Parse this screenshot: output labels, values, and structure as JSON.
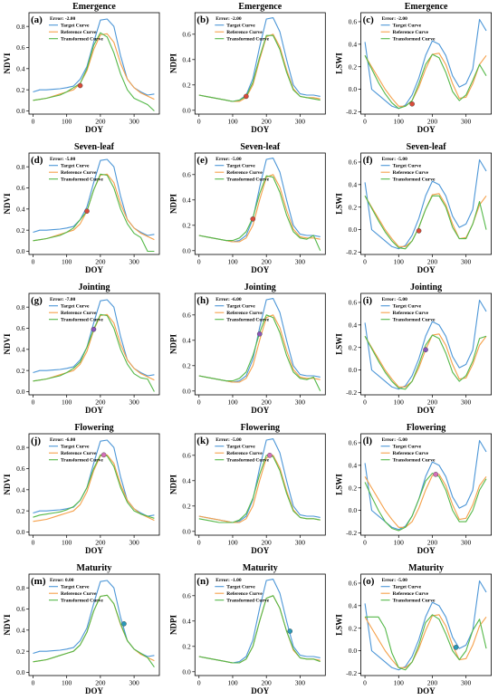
{
  "series_names": [
    "Target Curve",
    "Reference Curve",
    "Transformed Curve"
  ],
  "colors": {
    "target": "#4c96d7",
    "reference": "#f5a04a",
    "transformed": "#54b848"
  },
  "charts": [
    {
      "label": "(a)",
      "title": "Emergence",
      "ylabel": "NDVI",
      "xlabel": "DOY",
      "error": "Error: -2.00",
      "index": "ndvi",
      "stage": "emergence",
      "shift": -2,
      "marker": {
        "x": 140,
        "y": 0.24,
        "color": "#d94b3a"
      }
    },
    {
      "label": "(b)",
      "title": "Emergence",
      "ylabel": "NDPI",
      "xlabel": "DOY",
      "error": "Error: -2.00",
      "index": "ndpi",
      "stage": "emergence",
      "shift": -2,
      "marker": {
        "x": 140,
        "y": 0.11,
        "color": "#d94b3a"
      }
    },
    {
      "label": "(c)",
      "title": "Emergence",
      "ylabel": "LSWI",
      "xlabel": "DOY",
      "error": "Error: -2.00",
      "index": "lswi",
      "stage": "emergence",
      "shift": -2,
      "marker": {
        "x": 140,
        "y": -0.13,
        "color": "#d94b3a"
      }
    },
    {
      "label": "(d)",
      "title": "Seven-leaf",
      "ylabel": "NDVI",
      "xlabel": "DOY",
      "error": "Error: -5.00",
      "index": "ndvi",
      "stage": "seven",
      "shift": -5,
      "marker": {
        "x": 160,
        "y": 0.38,
        "color": "#d94b3a"
      }
    },
    {
      "label": "(e)",
      "title": "Seven-leaf",
      "ylabel": "NDPI",
      "xlabel": "DOY",
      "error": "Error: -5.00",
      "index": "ndpi",
      "stage": "seven",
      "shift": -5,
      "marker": {
        "x": 160,
        "y": 0.25,
        "color": "#d94b3a"
      }
    },
    {
      "label": "(f)",
      "title": "Seven-leaf",
      "ylabel": "LSWI",
      "xlabel": "DOY",
      "error": "Error: -5.00",
      "index": "lswi",
      "stage": "seven",
      "shift": -5,
      "marker": {
        "x": 160,
        "y": -0.01,
        "color": "#d94b3a"
      }
    },
    {
      "label": "(g)",
      "title": "Jointing",
      "ylabel": "NDVI",
      "xlabel": "DOY",
      "error": "Error: -7.00",
      "index": "ndvi",
      "stage": "jointing",
      "shift": -7,
      "marker": {
        "x": 180,
        "y": 0.59,
        "color": "#8a55b8"
      }
    },
    {
      "label": "(h)",
      "title": "Jointing",
      "ylabel": "NDPI",
      "xlabel": "DOY",
      "error": "Error: -6.00",
      "index": "ndpi",
      "stage": "jointing",
      "shift": -6,
      "marker": {
        "x": 180,
        "y": 0.45,
        "color": "#8a55b8"
      }
    },
    {
      "label": "(i)",
      "title": "Jointing",
      "ylabel": "LSWI",
      "xlabel": "DOY",
      "error": "Error: -5.00",
      "index": "lswi",
      "stage": "jointing",
      "shift": -5,
      "marker": {
        "x": 180,
        "y": 0.18,
        "color": "#8a55b8"
      }
    },
    {
      "label": "(j)",
      "title": "Flowering",
      "ylabel": "NDVI",
      "xlabel": "DOY",
      "error": "Error: -6.00",
      "index": "ndvi",
      "stage": "flowering",
      "shift": -6,
      "marker": {
        "x": 210,
        "y": 0.73,
        "color": "#d66fb8"
      }
    },
    {
      "label": "(k)",
      "title": "Flowering",
      "ylabel": "NDPI",
      "xlabel": "DOY",
      "error": "Error: -5.00",
      "index": "ndpi",
      "stage": "flowering",
      "shift": -5,
      "marker": {
        "x": 210,
        "y": 0.6,
        "color": "#d66fb8"
      }
    },
    {
      "label": "(l)",
      "title": "Flowering",
      "ylabel": "LSWI",
      "xlabel": "DOY",
      "error": "Error: -5.00",
      "index": "lswi",
      "stage": "flowering",
      "shift": -5,
      "marker": {
        "x": 210,
        "y": 0.32,
        "color": "#d66fb8"
      }
    },
    {
      "label": "(m)",
      "title": "Maturity",
      "ylabel": "NDVI",
      "xlabel": "DOY",
      "error": "Error: 0.00",
      "index": "ndvi",
      "stage": "maturity",
      "shift": 0,
      "marker": {
        "x": 270,
        "y": 0.46,
        "color": "#2a9ab8"
      }
    },
    {
      "label": "(n)",
      "title": "Maturity",
      "ylabel": "NDPI",
      "xlabel": "DOY",
      "error": "Error: -1.00",
      "index": "ndpi",
      "stage": "maturity",
      "shift": -1,
      "marker": {
        "x": 270,
        "y": 0.32,
        "color": "#2a9ab8"
      }
    },
    {
      "label": "(o)",
      "title": "Maturity",
      "ylabel": "LSWI",
      "xlabel": "DOY",
      "error": "Error: -5.00",
      "index": "lswi",
      "stage": "maturity",
      "shift": -5,
      "marker": {
        "x": 270,
        "y": 0.03,
        "color": "#2a9ab8"
      }
    }
  ],
  "chart_data": {
    "type": "line",
    "x": [
      0,
      20,
      40,
      60,
      80,
      100,
      120,
      140,
      160,
      180,
      200,
      220,
      240,
      260,
      280,
      300,
      320,
      340,
      360
    ],
    "xlim": [
      -12,
      375
    ],
    "xticks": [
      0,
      100,
      200,
      300
    ],
    "indices": {
      "ndvi": {
        "ylim": [
          -0.03,
          0.93
        ],
        "yticks": [
          0.0,
          0.2,
          0.4,
          0.6,
          0.8
        ],
        "target": [
          0.18,
          0.2,
          0.2,
          0.205,
          0.21,
          0.22,
          0.235,
          0.3,
          0.42,
          0.65,
          0.86,
          0.87,
          0.8,
          0.52,
          0.3,
          0.22,
          0.18,
          0.15,
          0.16
        ],
        "reference": [
          0.1,
          0.11,
          0.12,
          0.14,
          0.16,
          0.18,
          0.2,
          0.26,
          0.38,
          0.58,
          0.72,
          0.73,
          0.65,
          0.45,
          0.3,
          0.22,
          0.17,
          0.14,
          0.11
        ],
        "transformed": {
          "emergence": [
            0.1,
            0.11,
            0.12,
            0.135,
            0.15,
            0.18,
            0.22,
            0.26,
            0.4,
            0.62,
            0.74,
            0.7,
            0.55,
            0.35,
            0.2,
            0.12,
            0.09,
            0.06,
            0.0
          ],
          "seven": [
            0.1,
            0.11,
            0.12,
            0.135,
            0.15,
            0.18,
            0.22,
            0.3,
            0.38,
            0.58,
            0.73,
            0.72,
            0.6,
            0.4,
            0.26,
            0.17,
            0.13,
            0.0,
            0.0
          ],
          "jointing": [
            0.1,
            0.11,
            0.12,
            0.135,
            0.15,
            0.18,
            0.22,
            0.28,
            0.42,
            0.59,
            0.73,
            0.72,
            0.6,
            0.4,
            0.26,
            0.17,
            0.13,
            0.12,
            0.0
          ],
          "flowering": [
            0.14,
            0.16,
            0.17,
            0.18,
            0.19,
            0.21,
            0.24,
            0.3,
            0.42,
            0.6,
            0.73,
            0.72,
            0.62,
            0.42,
            0.28,
            0.2,
            0.17,
            0.15,
            0.13
          ],
          "maturity": [
            0.1,
            0.11,
            0.12,
            0.14,
            0.16,
            0.18,
            0.2,
            0.26,
            0.38,
            0.58,
            0.72,
            0.73,
            0.65,
            0.46,
            0.3,
            0.22,
            0.18,
            0.14,
            0.05
          ]
        }
      },
      "ndpi": {
        "ylim": [
          -0.03,
          0.77
        ],
        "yticks": [
          0.0,
          0.2,
          0.4,
          0.6
        ],
        "target": [
          0.12,
          0.11,
          0.1,
          0.09,
          0.08,
          0.07,
          0.08,
          0.12,
          0.25,
          0.5,
          0.72,
          0.73,
          0.62,
          0.4,
          0.2,
          0.13,
          0.12,
          0.12,
          0.11
        ],
        "reference": [
          0.12,
          0.11,
          0.1,
          0.09,
          0.08,
          0.07,
          0.07,
          0.1,
          0.2,
          0.4,
          0.58,
          0.6,
          0.5,
          0.32,
          0.17,
          0.11,
          0.1,
          0.1,
          0.09
        ],
        "transformed": {
          "emergence": [
            0.12,
            0.11,
            0.1,
            0.09,
            0.08,
            0.07,
            0.08,
            0.11,
            0.22,
            0.42,
            0.59,
            0.59,
            0.48,
            0.3,
            0.16,
            0.11,
            0.1,
            0.09,
            0.08
          ],
          "seven": [
            0.12,
            0.11,
            0.1,
            0.09,
            0.08,
            0.08,
            0.1,
            0.15,
            0.26,
            0.45,
            0.59,
            0.58,
            0.46,
            0.28,
            0.15,
            0.1,
            0.09,
            0.12,
            0.0
          ],
          "jointing": [
            0.12,
            0.11,
            0.1,
            0.09,
            0.08,
            0.08,
            0.1,
            0.15,
            0.28,
            0.46,
            0.6,
            0.58,
            0.46,
            0.28,
            0.15,
            0.1,
            0.09,
            0.11,
            0.0
          ],
          "flowering": [
            0.1,
            0.09,
            0.08,
            0.07,
            0.07,
            0.07,
            0.09,
            0.14,
            0.26,
            0.45,
            0.6,
            0.59,
            0.48,
            0.3,
            0.16,
            0.11,
            0.1,
            0.1,
            0.09
          ],
          "maturity": [
            0.12,
            0.11,
            0.1,
            0.09,
            0.08,
            0.07,
            0.07,
            0.1,
            0.2,
            0.4,
            0.58,
            0.6,
            0.5,
            0.32,
            0.18,
            0.11,
            0.1,
            0.1,
            0.08
          ]
        }
      },
      "lswi": {
        "ylim": [
          -0.22,
          0.68
        ],
        "yticks": [
          -0.2,
          0.0,
          0.2,
          0.4,
          0.6
        ],
        "target": [
          0.42,
          0.0,
          -0.05,
          -0.1,
          -0.15,
          -0.17,
          -0.14,
          -0.05,
          0.1,
          0.3,
          0.43,
          0.4,
          0.3,
          0.12,
          0.02,
          0.05,
          0.18,
          0.62,
          0.52
        ],
        "reference": [
          0.3,
          0.2,
          0.1,
          0.0,
          -0.08,
          -0.15,
          -0.15,
          -0.1,
          0.02,
          0.18,
          0.31,
          0.32,
          0.22,
          0.05,
          -0.08,
          -0.07,
          0.05,
          0.22,
          0.3
        ],
        "transformed": {
          "emergence": [
            0.3,
            0.18,
            0.06,
            -0.04,
            -0.12,
            -0.17,
            -0.15,
            -0.1,
            0.05,
            0.22,
            0.31,
            0.28,
            0.15,
            -0.02,
            -0.1,
            -0.05,
            0.08,
            0.22,
            0.12
          ],
          "seven": [
            0.3,
            0.19,
            0.08,
            -0.02,
            -0.1,
            -0.16,
            -0.17,
            -0.1,
            0.02,
            0.18,
            0.3,
            0.3,
            0.2,
            0.02,
            -0.08,
            -0.08,
            0.05,
            0.25,
            0.0
          ],
          "jointing": [
            0.3,
            0.19,
            0.08,
            -0.02,
            -0.1,
            -0.16,
            -0.17,
            -0.1,
            0.05,
            0.22,
            0.31,
            0.28,
            0.15,
            -0.02,
            -0.1,
            -0.05,
            0.08,
            0.28,
            0.3
          ],
          "flowering": [
            0.25,
            0.12,
            0.0,
            -0.1,
            -0.16,
            -0.18,
            -0.15,
            -0.05,
            0.1,
            0.26,
            0.33,
            0.3,
            0.18,
            0.0,
            -0.1,
            -0.1,
            0.0,
            0.18,
            0.28
          ],
          "maturity": [
            0.3,
            0.3,
            0.3,
            0.2,
            -0.02,
            -0.15,
            -0.17,
            -0.1,
            0.05,
            0.25,
            0.32,
            0.28,
            0.15,
            0.0,
            -0.08,
            0.0,
            0.18,
            0.28,
            0.02
          ]
        }
      }
    }
  }
}
